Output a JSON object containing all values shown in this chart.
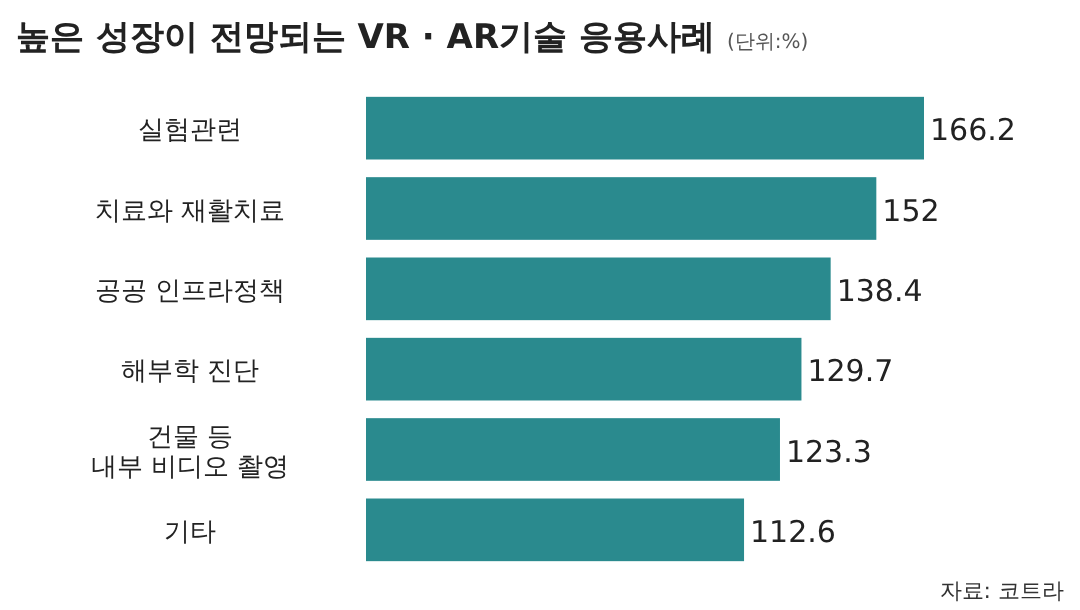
{
  "chart_data": {
    "type": "bar",
    "orientation": "horizontal",
    "title": "높은 성장이 전망되는 VR · AR기술 응용사례",
    "subtitle": "(단위:%)",
    "categories": [
      "실험관련",
      "치료와 재활치료",
      "공공 인프라정책",
      "해부학 진단",
      "건물 등\n내부 비디오 촬영",
      "기타"
    ],
    "values": [
      166.2,
      152,
      138.4,
      129.7,
      123.3,
      112.6
    ],
    "color": "#2a8a8e",
    "data_labels": true,
    "annotations": [
      "자료: 코트라"
    ]
  }
}
